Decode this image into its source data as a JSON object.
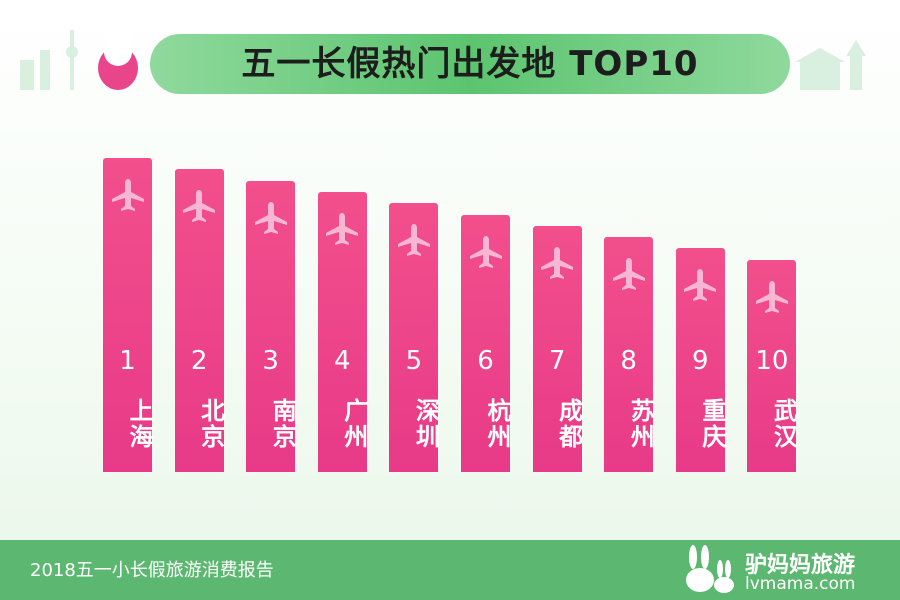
{
  "header": {
    "title": "五一长假热门出发地 TOP10"
  },
  "items": [
    {
      "rank": "1",
      "city": "上海"
    },
    {
      "rank": "2",
      "city": "北京"
    },
    {
      "rank": "3",
      "city": "南京"
    },
    {
      "rank": "4",
      "city": "广州"
    },
    {
      "rank": "5",
      "city": "深圳"
    },
    {
      "rank": "6",
      "city": "杭州"
    },
    {
      "rank": "7",
      "city": "成都"
    },
    {
      "rank": "8",
      "city": "苏州"
    },
    {
      "rank": "9",
      "city": "重庆"
    },
    {
      "rank": "10",
      "city": "武汉"
    }
  ],
  "footer": {
    "source": "2018五一小长假旅游消费报告",
    "brand": "驴妈妈旅游",
    "url": "lvmama.com"
  }
}
